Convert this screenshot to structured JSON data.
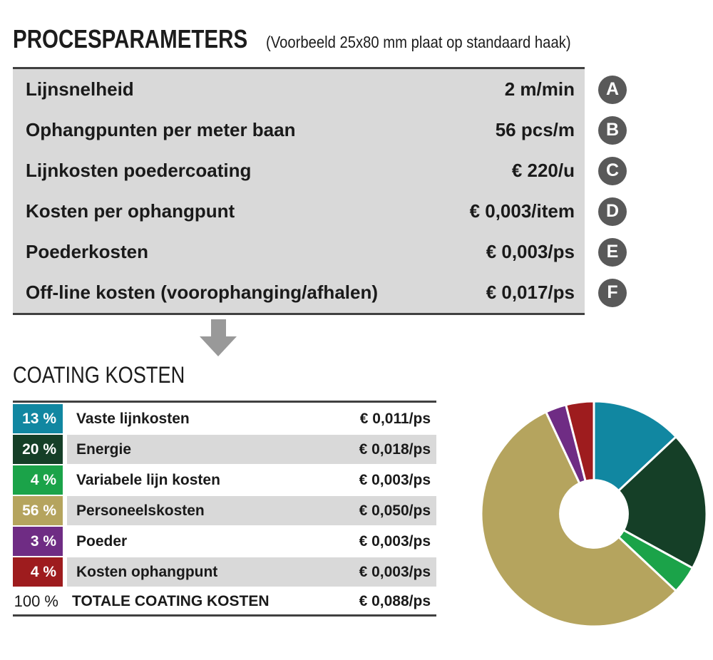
{
  "header": {
    "title": "PROCESPARAMETERS",
    "subtitle": "(Voorbeeld 25x80 mm plaat op standaard haak)"
  },
  "process_params": {
    "rows": [
      {
        "label": "Lijnsnelheid",
        "value": "2 m/min",
        "badge": "A"
      },
      {
        "label": "Ophangpunten per meter baan",
        "value": "56 pcs/m",
        "badge": "B"
      },
      {
        "label": "Lijnkosten poedercoating",
        "value": "€ 220/u",
        "badge": "C"
      },
      {
        "label": "Kosten per ophangpunt",
        "value": "€ 0,003/item",
        "badge": "D"
      },
      {
        "label": "Poederkosten",
        "value": "€ 0,003/ps",
        "badge": "E"
      },
      {
        "label": "Off-line kosten (voorophanging/afhalen)",
        "value": "€ 0,017/ps",
        "badge": "F"
      }
    ],
    "badge_color": "#595959",
    "table_bg": "#d9d9d9",
    "border_color": "#404040"
  },
  "arrow_color": "#999999",
  "coating": {
    "heading": "COATING KOSTEN",
    "rows": [
      {
        "percent": "13 %",
        "label": "Vaste lijnkosten",
        "value": "€ 0,011/ps",
        "color": "#1187a1"
      },
      {
        "percent": "20 %",
        "label": "Energie",
        "value": "€ 0,018/ps",
        "color": "#153f27"
      },
      {
        "percent": "4 %",
        "label": "Variabele lijn kosten",
        "value": "€ 0,003/ps",
        "color": "#1ba349"
      },
      {
        "percent": "56 %",
        "label": "Personeelskosten",
        "value": "€ 0,050/ps",
        "color": "#b5a45e"
      },
      {
        "percent": "3 %",
        "label": "Poeder",
        "value": "€ 0,003/ps",
        "color": "#6f2c84"
      },
      {
        "percent": "4 %",
        "label": "Kosten ophangpunt",
        "value": "€ 0,003/ps",
        "color": "#9e1c1e"
      }
    ],
    "total": {
      "percent": "100 %",
      "label": "TOTALE COATING KOSTEN",
      "value": "€ 0,088/ps"
    }
  },
  "chart_data": {
    "type": "pie",
    "subtype": "donut",
    "title": "COATING KOSTEN",
    "categories": [
      "Vaste lijnkosten",
      "Energie",
      "Variabele lijn kosten",
      "Personeelskosten",
      "Poeder",
      "Kosten ophangpunt"
    ],
    "values": [
      13,
      20,
      4,
      56,
      3,
      4
    ],
    "unit": "%",
    "values_eur_per_ps": [
      "0,011",
      "0,018",
      "0,003",
      "0,050",
      "0,003",
      "0,003"
    ],
    "total_eur_per_ps": "0,088",
    "colors": [
      "#1187a1",
      "#153f27",
      "#1ba349",
      "#b5a45e",
      "#6f2c84",
      "#9e1c1e"
    ],
    "start_angle": "top",
    "direction": "clockwise",
    "inner_radius_ratio": 0.3,
    "gap_color": "#ffffff",
    "legend_position": "none"
  }
}
